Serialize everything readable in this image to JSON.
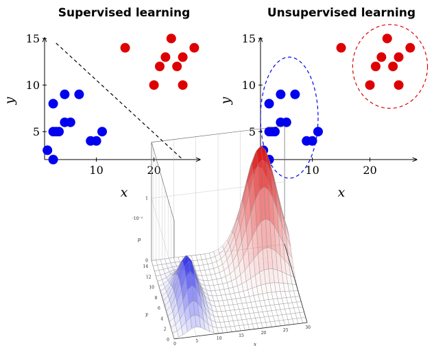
{
  "chart_data": [
    {
      "type": "scatter",
      "title": "Supervised learning",
      "xlabel": "x",
      "ylabel": "y",
      "xlim": [
        1,
        28
      ],
      "ylim": [
        2,
        15.5
      ],
      "xticks": [
        10,
        20
      ],
      "yticks": [
        5,
        10,
        15
      ],
      "grid": false,
      "series": [
        {
          "color": "#0000ee",
          "x": [
            1.5,
            2.5,
            3,
            2.5,
            3.5,
            4.5,
            5.5,
            4.5,
            7,
            9,
            10,
            11,
            2.5
          ],
          "y": [
            3,
            2,
            5,
            8,
            5,
            6,
            6,
            9,
            9,
            4,
            4,
            5,
            5
          ]
        },
        {
          "color": "#dd0000",
          "x": [
            15,
            20,
            21,
            22,
            23,
            24,
            25,
            25,
            27
          ],
          "y": [
            14,
            10,
            12,
            13,
            15,
            12,
            13,
            10,
            14
          ]
        }
      ],
      "annotations": [
        {
          "type": "dashed-line",
          "color": "#000000",
          "from": [
            3,
            14.5
          ],
          "to": [
            25,
            2
          ]
        }
      ]
    },
    {
      "type": "scatter",
      "title": "Unsupervised learning",
      "xlabel": "x",
      "ylabel": "y",
      "xlim": [
        1,
        28
      ],
      "ylim": [
        2,
        15.5
      ],
      "xticks": [
        10,
        20
      ],
      "yticks": [
        5,
        10,
        15
      ],
      "grid": false,
      "series": [
        {
          "color": "#0000ee",
          "x": [
            1.5,
            2.5,
            3,
            2.5,
            3.5,
            4.5,
            5.5,
            4.5,
            7,
            9,
            10,
            11,
            2.5
          ],
          "y": [
            3,
            2,
            5,
            8,
            5,
            6,
            6,
            9,
            9,
            4,
            4,
            5,
            5
          ]
        },
        {
          "color": "#dd0000",
          "x": [
            15,
            20,
            21,
            22,
            23,
            24,
            25,
            25,
            27
          ],
          "y": [
            14,
            10,
            12,
            13,
            15,
            12,
            13,
            10,
            14
          ]
        }
      ],
      "annotations": [
        {
          "type": "dashed-ellipse",
          "color": "#0000ee",
          "center": [
            6,
            6.5
          ],
          "radii": [
            5,
            6.5
          ]
        },
        {
          "type": "dashed-ellipse",
          "color": "#dd0000",
          "center": [
            23.5,
            12
          ],
          "radii": [
            6.5,
            4.5
          ]
        }
      ]
    },
    {
      "type": "surface",
      "xlabel": "x",
      "ylabel": "y",
      "zlabel": "p",
      "zmultiplier": "·10⁻²",
      "xlim": [
        0,
        30
      ],
      "ylim": [
        0,
        15
      ],
      "zlim": [
        0,
        1.9
      ],
      "xticks": [
        0,
        5,
        10,
        15,
        20,
        25,
        30
      ],
      "yticks": [
        0,
        2,
        4,
        6,
        8,
        10,
        12,
        14
      ],
      "zticks": [
        0,
        1
      ],
      "components": [
        {
          "color": "#0000ee",
          "center": [
            5,
            5.5
          ],
          "sigma": [
            2,
            3
          ],
          "peak": 0.8
        },
        {
          "color": "#dd0000",
          "center": [
            24,
            13
          ],
          "sigma": [
            3.5,
            2.5
          ],
          "peak": 1.8
        }
      ]
    }
  ]
}
